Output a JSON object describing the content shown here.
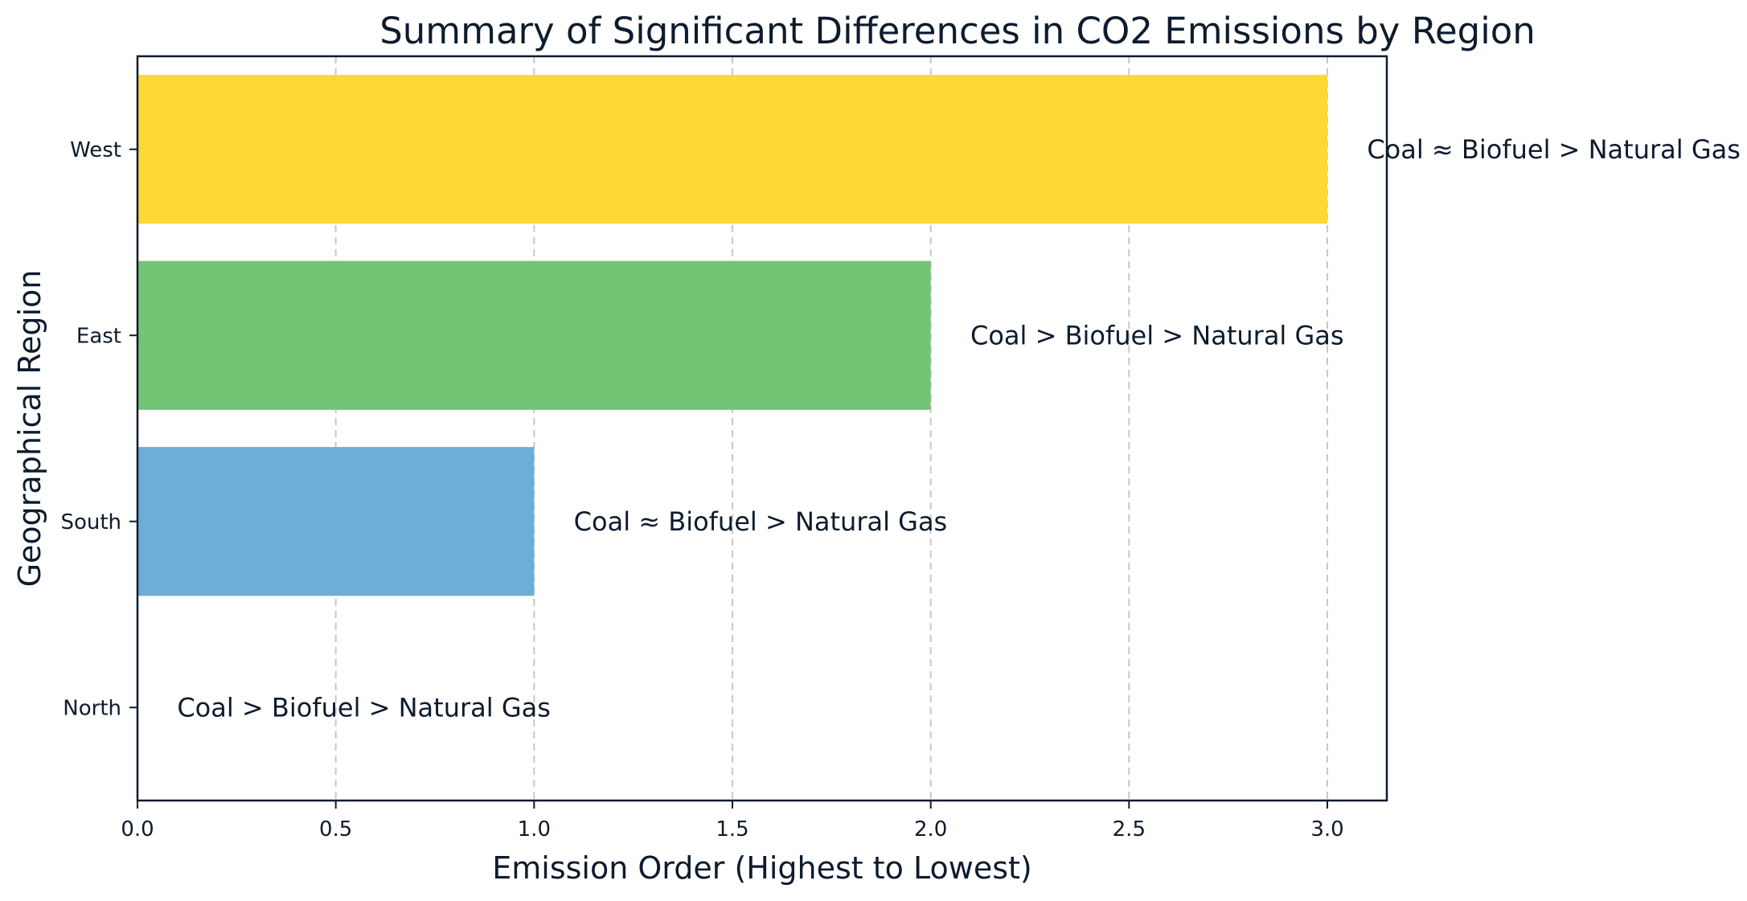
{
  "chart_data": {
    "type": "bar",
    "orientation": "horizontal",
    "title": "Summary of Significant Differences in CO2 Emissions by Region",
    "xlabel": "Emission Order (Highest to Lowest)",
    "ylabel": "Geographical Region",
    "categories": [
      "North",
      "South",
      "East",
      "West"
    ],
    "values": [
      0,
      1,
      2,
      3
    ],
    "annotations": [
      "Coal > Biofuel > Natural Gas",
      "Coal ≈ Biofuel > Natural Gas",
      "Coal > Biofuel > Natural Gas",
      "Coal ≈ Biofuel > Natural Gas"
    ],
    "colors": [
      "#6baed6",
      "#6baed6",
      "#74c476",
      "#fdd837"
    ],
    "xlim": [
      0,
      3.15
    ],
    "xticks": [
      "0.0",
      "0.5",
      "1.0",
      "1.5",
      "2.0",
      "2.5",
      "3.0"
    ],
    "grid": "x-dashed",
    "legend": "none"
  }
}
